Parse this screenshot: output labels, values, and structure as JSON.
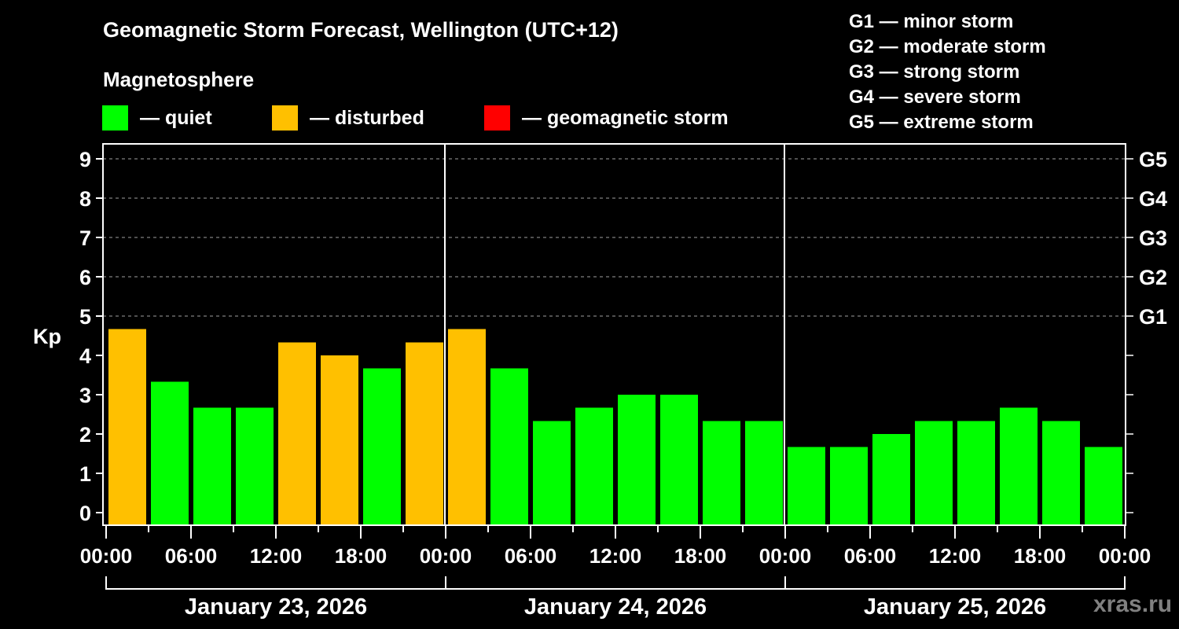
{
  "header": {
    "title": "Geomagnetic Storm Forecast, Wellington (UTC+12)",
    "subtitle": "Magnetosphere"
  },
  "legend": {
    "items": [
      {
        "label": "— quiet",
        "color": "#00FF00",
        "x": 130
      },
      {
        "label": "— disturbed",
        "color": "#FFC000",
        "x": 346
      },
      {
        "label": "— geomagnetic storm",
        "color": "#FF0000",
        "x": 616
      }
    ]
  },
  "gscale": {
    "items": [
      "G1 — minor storm",
      "G2 — moderate storm",
      "G3 — strong storm",
      "G4 — severe storm",
      "G5 — extreme storm"
    ]
  },
  "watermark": "xras.ru",
  "chart_data": {
    "type": "bar",
    "title": "Geomagnetic Storm Forecast, Wellington (UTC+12)",
    "ylabel": "Kp",
    "xlabel": "",
    "ylim": [
      0,
      9
    ],
    "yticks": [
      0,
      1,
      2,
      3,
      4,
      5,
      6,
      7,
      8,
      9
    ],
    "right_axis_labels": [
      {
        "kp": 5,
        "label": "G1"
      },
      {
        "kp": 6,
        "label": "G2"
      },
      {
        "kp": 7,
        "label": "G3"
      },
      {
        "kp": 8,
        "label": "G4"
      },
      {
        "kp": 9,
        "label": "G5"
      }
    ],
    "grid": {
      "y": true,
      "style": "dashed",
      "from": 5
    },
    "xtick_labels": [
      "00:00",
      "06:00",
      "12:00",
      "18:00",
      "00:00",
      "06:00",
      "12:00",
      "18:00",
      "00:00",
      "06:00",
      "12:00",
      "18:00",
      "00:00",
      "06:00",
      "12:00",
      "18:00",
      "00:00"
    ],
    "days": [
      "January 23, 2026",
      "January 24, 2026",
      "January 25, 2026"
    ],
    "interval_hours": 3,
    "categories": [
      "Jan 23 00:00",
      "Jan 23 03:00",
      "Jan 23 06:00",
      "Jan 23 09:00",
      "Jan 23 12:00",
      "Jan 23 15:00",
      "Jan 23 18:00",
      "Jan 23 21:00",
      "Jan 24 00:00",
      "Jan 24 03:00",
      "Jan 24 06:00",
      "Jan 24 09:00",
      "Jan 24 12:00",
      "Jan 24 15:00",
      "Jan 24 18:00",
      "Jan 24 21:00",
      "Jan 25 00:00",
      "Jan 25 03:00",
      "Jan 25 06:00",
      "Jan 25 09:00",
      "Jan 25 12:00",
      "Jan 25 15:00",
      "Jan 25 18:00",
      "Jan 25 21:00"
    ],
    "values": [
      4.67,
      3.33,
      2.67,
      2.67,
      4.33,
      4.0,
      3.67,
      4.33,
      4.67,
      3.67,
      2.33,
      2.67,
      3.0,
      3.0,
      2.33,
      2.33,
      1.67,
      1.67,
      2.0,
      2.33,
      2.33,
      2.67,
      2.33,
      1.67
    ],
    "status": [
      "disturbed",
      "quiet",
      "quiet",
      "quiet",
      "disturbed",
      "disturbed",
      "quiet",
      "disturbed",
      "disturbed",
      "quiet",
      "quiet",
      "quiet",
      "quiet",
      "quiet",
      "quiet",
      "quiet",
      "quiet",
      "quiet",
      "quiet",
      "quiet",
      "quiet",
      "quiet",
      "quiet",
      "quiet"
    ],
    "colors": {
      "quiet": "#00FF00",
      "disturbed": "#FFC000",
      "storm": "#FF0000"
    }
  }
}
